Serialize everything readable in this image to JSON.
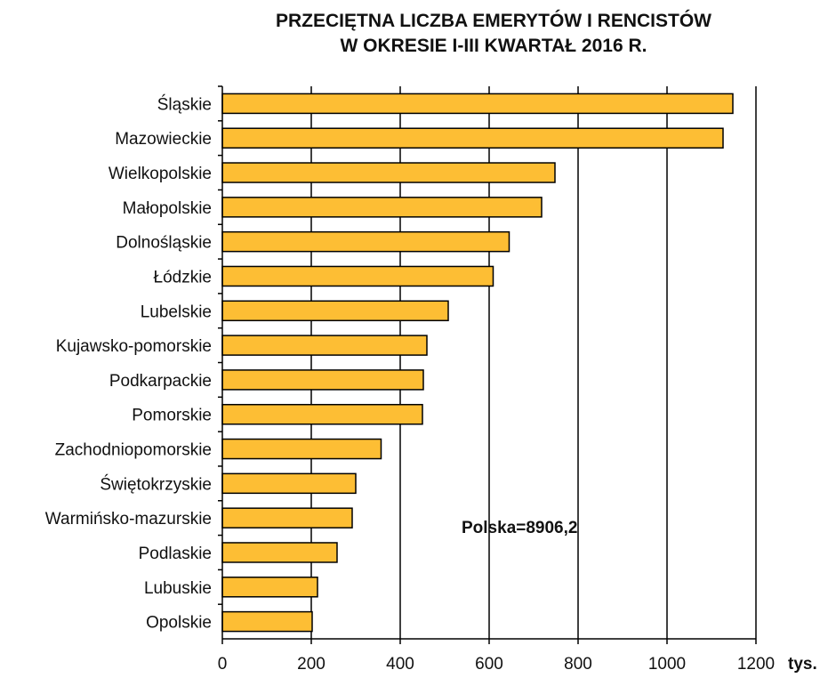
{
  "chart_data": {
    "type": "bar",
    "orientation": "horizontal",
    "title_lines": [
      "PRZECIĘTNA LICZBA EMERYTÓW I RENCISTÓW",
      "W OKRESIE I-III KWARTAŁ 2016 R."
    ],
    "xlim": [
      0,
      1200
    ],
    "x_ticks": [
      "0",
      "200",
      "400",
      "600",
      "800",
      "1000",
      "1200"
    ],
    "unit_label": "tys.",
    "annotation": "Polska=8906,2",
    "grid": "vertical",
    "bar_color": "#FDBE34",
    "bar_edge_color": "#000000",
    "categories": [
      "Śląskie",
      "Mazowieckie",
      "Wielkopolskie",
      "Małopolskie",
      "Dolnośląskie",
      "Łódzkie",
      "Lubelskie",
      "Kujawsko-pomorskie",
      "Podkarpackie",
      "Pomorskie",
      "Zachodniopomorskie",
      "Świętokrzyskie",
      "Warmińsko-mazurskie",
      "Podlaskie",
      "Lubuskie",
      "Opolskie"
    ],
    "values": [
      1148,
      1126,
      748,
      718,
      645,
      609,
      508,
      460,
      452,
      450,
      357,
      300,
      292,
      258,
      214,
      202
    ]
  }
}
